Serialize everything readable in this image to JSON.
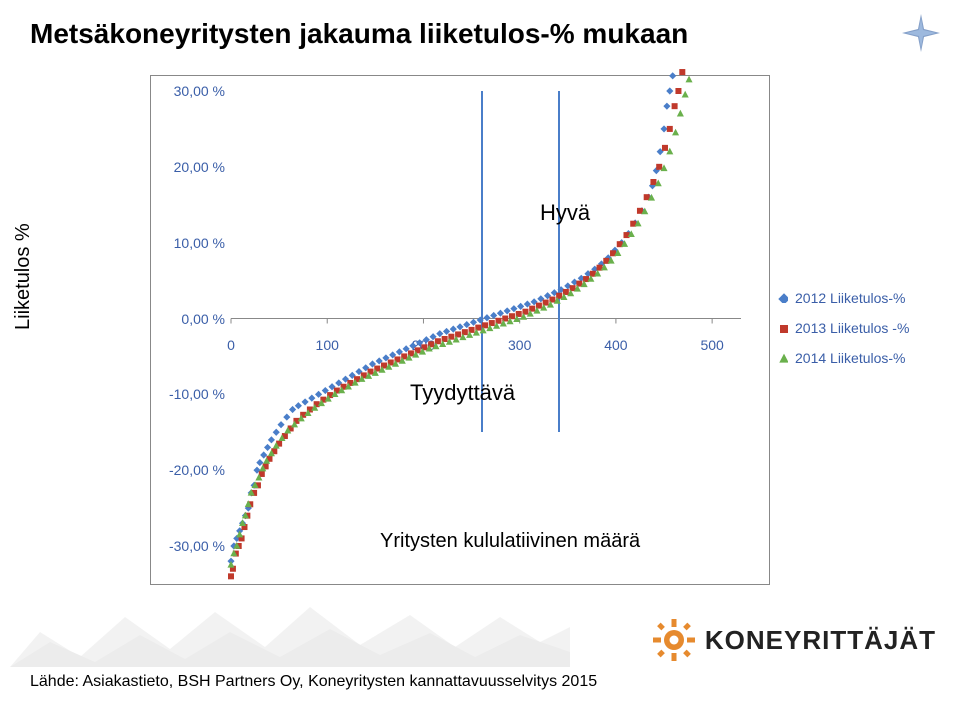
{
  "title": "Metsäkoneyritysten jakauma liiketulos-% mukaan",
  "y_axis_label": "Liiketulos %",
  "x_axis_label": "Yritysten kululatiivinen määrä",
  "annotations": {
    "good": "Hyvä",
    "satisfactory": "Tyydyttävä"
  },
  "chart": {
    "type": "scatter",
    "background_color": "#ffffff",
    "border_color": "#888888",
    "tick_color": "#3a5ea8",
    "tick_fontsize": 14,
    "ylim": [
      -30,
      30
    ],
    "ytick_step": 10,
    "y_ticks": [
      "30,00 %",
      "20,00 %",
      "10,00 %",
      "0,00 %",
      "-10,00 %",
      "-20,00 %",
      "-30,00 %"
    ],
    "xlim": [
      0,
      530
    ],
    "x_ticks": [
      0,
      100,
      200,
      300,
      400,
      500
    ],
    "vlines": {
      "color": "#4a7ec9",
      "positions": [
        260,
        340
      ],
      "y_from": -15,
      "y_to": 30
    },
    "series": [
      {
        "label": "2012 Liiketulos-%",
        "color": "#4a7ec9",
        "marker": "diamond",
        "marker_size": 5,
        "points": [
          [
            0,
            -32
          ],
          [
            3,
            -30
          ],
          [
            6,
            -29
          ],
          [
            9,
            -28
          ],
          [
            12,
            -27
          ],
          [
            15,
            -26
          ],
          [
            18,
            -25
          ],
          [
            21,
            -23
          ],
          [
            24,
            -22
          ],
          [
            27,
            -20
          ],
          [
            30,
            -19
          ],
          [
            34,
            -18
          ],
          [
            38,
            -17
          ],
          [
            42,
            -16
          ],
          [
            47,
            -15
          ],
          [
            52,
            -14
          ],
          [
            58,
            -13
          ],
          [
            64,
            -12
          ],
          [
            70,
            -11.5
          ],
          [
            77,
            -11
          ],
          [
            84,
            -10.5
          ],
          [
            91,
            -10
          ],
          [
            98,
            -9.5
          ],
          [
            105,
            -9
          ],
          [
            112,
            -8.5
          ],
          [
            119,
            -8
          ],
          [
            126,
            -7.5
          ],
          [
            133,
            -7
          ],
          [
            140,
            -6.5
          ],
          [
            147,
            -6
          ],
          [
            154,
            -5.6
          ],
          [
            161,
            -5.2
          ],
          [
            168,
            -4.8
          ],
          [
            175,
            -4.4
          ],
          [
            182,
            -4
          ],
          [
            189,
            -3.6
          ],
          [
            196,
            -3.2
          ],
          [
            203,
            -2.8
          ],
          [
            210,
            -2.4
          ],
          [
            217,
            -2
          ],
          [
            224,
            -1.7
          ],
          [
            231,
            -1.4
          ],
          [
            238,
            -1.1
          ],
          [
            245,
            -0.8
          ],
          [
            252,
            -0.5
          ],
          [
            259,
            -0.2
          ],
          [
            266,
            0.1
          ],
          [
            273,
            0.4
          ],
          [
            280,
            0.7
          ],
          [
            287,
            1
          ],
          [
            294,
            1.3
          ],
          [
            301,
            1.6
          ],
          [
            308,
            1.9
          ],
          [
            315,
            2.2
          ],
          [
            322,
            2.6
          ],
          [
            329,
            3
          ],
          [
            336,
            3.4
          ],
          [
            343,
            3.8
          ],
          [
            350,
            4.3
          ],
          [
            357,
            4.8
          ],
          [
            364,
            5.3
          ],
          [
            371,
            5.9
          ],
          [
            378,
            6.5
          ],
          [
            385,
            7.2
          ],
          [
            392,
            8
          ],
          [
            399,
            9
          ],
          [
            406,
            10
          ],
          [
            413,
            11.2
          ],
          [
            420,
            12.6
          ],
          [
            427,
            14.2
          ],
          [
            434,
            16
          ],
          [
            438,
            17.5
          ],
          [
            442,
            19.5
          ],
          [
            446,
            22
          ],
          [
            450,
            25
          ],
          [
            453,
            28
          ],
          [
            456,
            30
          ],
          [
            459,
            32
          ]
        ]
      },
      {
        "label": "2013 Liiketulos -%",
        "color": "#c0392b",
        "marker": "square",
        "marker_size": 6,
        "points": [
          [
            0,
            -34
          ],
          [
            2,
            -33
          ],
          [
            5,
            -31
          ],
          [
            8,
            -30
          ],
          [
            11,
            -29
          ],
          [
            14,
            -27.5
          ],
          [
            17,
            -26
          ],
          [
            20,
            -24.5
          ],
          [
            24,
            -23
          ],
          [
            28,
            -22
          ],
          [
            32,
            -20.5
          ],
          [
            36,
            -19.5
          ],
          [
            40,
            -18.5
          ],
          [
            45,
            -17.5
          ],
          [
            50,
            -16.5
          ],
          [
            56,
            -15.5
          ],
          [
            62,
            -14.5
          ],
          [
            68,
            -13.5
          ],
          [
            75,
            -12.7
          ],
          [
            82,
            -12
          ],
          [
            89,
            -11.3
          ],
          [
            96,
            -10.7
          ],
          [
            103,
            -10.1
          ],
          [
            110,
            -9.5
          ],
          [
            117,
            -9
          ],
          [
            124,
            -8.5
          ],
          [
            131,
            -8
          ],
          [
            138,
            -7.5
          ],
          [
            145,
            -7
          ],
          [
            152,
            -6.6
          ],
          [
            159,
            -6.2
          ],
          [
            166,
            -5.8
          ],
          [
            173,
            -5.4
          ],
          [
            180,
            -5
          ],
          [
            187,
            -4.6
          ],
          [
            194,
            -4.2
          ],
          [
            201,
            -3.8
          ],
          [
            208,
            -3.4
          ],
          [
            215,
            -3
          ],
          [
            222,
            -2.7
          ],
          [
            229,
            -2.4
          ],
          [
            236,
            -2.1
          ],
          [
            243,
            -1.8
          ],
          [
            250,
            -1.5
          ],
          [
            257,
            -1.2
          ],
          [
            264,
            -0.9
          ],
          [
            271,
            -0.6
          ],
          [
            278,
            -0.3
          ],
          [
            285,
            0
          ],
          [
            292,
            0.3
          ],
          [
            299,
            0.6
          ],
          [
            306,
            0.9
          ],
          [
            313,
            1.3
          ],
          [
            320,
            1.7
          ],
          [
            327,
            2.1
          ],
          [
            334,
            2.5
          ],
          [
            341,
            3
          ],
          [
            348,
            3.5
          ],
          [
            355,
            4
          ],
          [
            362,
            4.6
          ],
          [
            369,
            5.2
          ],
          [
            376,
            5.9
          ],
          [
            383,
            6.7
          ],
          [
            390,
            7.6
          ],
          [
            397,
            8.6
          ],
          [
            404,
            9.8
          ],
          [
            411,
            11
          ],
          [
            418,
            12.5
          ],
          [
            425,
            14.2
          ],
          [
            432,
            16
          ],
          [
            439,
            18
          ],
          [
            445,
            20
          ],
          [
            451,
            22.5
          ],
          [
            456,
            25
          ],
          [
            461,
            28
          ],
          [
            465,
            30
          ],
          [
            469,
            32.5
          ]
        ]
      },
      {
        "label": "2014 Liiketulos-%",
        "color": "#6ab04c",
        "marker": "triangle",
        "marker_size": 6,
        "points": [
          [
            0,
            -32.5
          ],
          [
            3,
            -31
          ],
          [
            6,
            -30
          ],
          [
            9,
            -28.5
          ],
          [
            12,
            -27
          ],
          [
            15,
            -26
          ],
          [
            18,
            -24.5
          ],
          [
            21,
            -23
          ],
          [
            25,
            -22
          ],
          [
            29,
            -21
          ],
          [
            33,
            -19.8
          ],
          [
            37,
            -18.8
          ],
          [
            42,
            -17.8
          ],
          [
            47,
            -16.8
          ],
          [
            53,
            -15.8
          ],
          [
            59,
            -14.8
          ],
          [
            66,
            -14
          ],
          [
            73,
            -13.2
          ],
          [
            80,
            -12.5
          ],
          [
            87,
            -11.8
          ],
          [
            94,
            -11.2
          ],
          [
            101,
            -10.6
          ],
          [
            108,
            -10
          ],
          [
            115,
            -9.5
          ],
          [
            122,
            -9
          ],
          [
            129,
            -8.5
          ],
          [
            136,
            -8
          ],
          [
            143,
            -7.6
          ],
          [
            150,
            -7.2
          ],
          [
            157,
            -6.8
          ],
          [
            164,
            -6.4
          ],
          [
            171,
            -6
          ],
          [
            178,
            -5.6
          ],
          [
            185,
            -5.2
          ],
          [
            192,
            -4.8
          ],
          [
            199,
            -4.4
          ],
          [
            206,
            -4
          ],
          [
            213,
            -3.7
          ],
          [
            220,
            -3.4
          ],
          [
            227,
            -3.1
          ],
          [
            234,
            -2.8
          ],
          [
            241,
            -2.5
          ],
          [
            248,
            -2.2
          ],
          [
            255,
            -1.9
          ],
          [
            262,
            -1.6
          ],
          [
            269,
            -1.3
          ],
          [
            276,
            -1
          ],
          [
            283,
            -0.7
          ],
          [
            290,
            -0.4
          ],
          [
            297,
            -0.1
          ],
          [
            304,
            0.2
          ],
          [
            311,
            0.6
          ],
          [
            318,
            1
          ],
          [
            325,
            1.4
          ],
          [
            332,
            1.8
          ],
          [
            339,
            2.3
          ],
          [
            346,
            2.8
          ],
          [
            353,
            3.3
          ],
          [
            360,
            3.9
          ],
          [
            367,
            4.5
          ],
          [
            374,
            5.2
          ],
          [
            381,
            5.9
          ],
          [
            388,
            6.7
          ],
          [
            395,
            7.6
          ],
          [
            402,
            8.6
          ],
          [
            409,
            9.8
          ],
          [
            416,
            11.1
          ],
          [
            423,
            12.5
          ],
          [
            430,
            14.1
          ],
          [
            437,
            15.9
          ],
          [
            444,
            17.8
          ],
          [
            450,
            19.8
          ],
          [
            456,
            22
          ],
          [
            462,
            24.5
          ],
          [
            467,
            27
          ],
          [
            472,
            29.5
          ],
          [
            476,
            31.5
          ]
        ]
      }
    ]
  },
  "legend": {
    "text_color": "#3a5ea8",
    "fontsize": 14,
    "items": [
      {
        "label": "2012 Liiketulos-%",
        "color": "#4a7ec9",
        "marker": "diamond"
      },
      {
        "label": "2013 Liiketulos -%",
        "color": "#c0392b",
        "marker": "square"
      },
      {
        "label": "2014 Liiketulos-%",
        "color": "#6ab04c",
        "marker": "triangle"
      }
    ]
  },
  "footer": "Lähde: Asiakastieto, BSH Partners Oy, Koneyritysten kannattavuusselvitys 2015",
  "logo": {
    "text": "KONEYRITTÄJÄT",
    "gear_color": "#e68a2e"
  },
  "star_color": "#5b7fb5"
}
